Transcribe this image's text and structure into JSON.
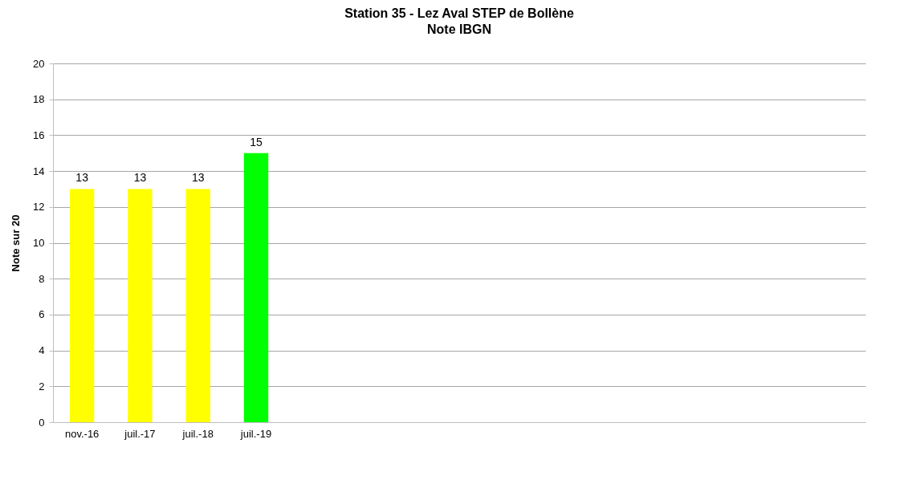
{
  "chart_data": {
    "type": "bar",
    "title": "Station 35 - Lez Aval STEP de Bollène",
    "subtitle": "Note IBGN",
    "ylabel": "Note sur 20",
    "categories": [
      "nov.-16",
      "juil.-17",
      "juil.-18",
      "juil.-19",
      null,
      null,
      null,
      null,
      null,
      null,
      null,
      null,
      null,
      null
    ],
    "values": [
      13,
      13,
      13,
      15,
      null,
      null,
      null,
      null,
      null,
      null,
      null,
      null,
      null,
      null
    ],
    "colors": [
      "#ffff00",
      "#ffff00",
      "#ffff00",
      "#00ff00",
      "#ffff00",
      "#ffff00",
      "#ffff00",
      "#ffff00",
      "#ffff00",
      "#ffff00",
      "#ffff00",
      "#ffff00",
      "#ffff00",
      "#ffff00"
    ],
    "ylim": [
      0,
      20
    ],
    "yticks": [
      0,
      2,
      4,
      6,
      8,
      10,
      12,
      14,
      16,
      18,
      20
    ],
    "grid": "y",
    "data_labels": true
  }
}
